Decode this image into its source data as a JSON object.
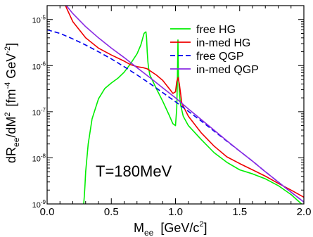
{
  "chart_data": {
    "type": "line",
    "xlabel": {
      "main": "M",
      "sub": "ee",
      "unit": "[GeV/c",
      "unit_sup": "2",
      "unit_close": "]"
    },
    "ylabel": {
      "lead": "dR",
      "lead_sub": "ee",
      "mid": "/dM",
      "mid_sup": "2",
      "unit": "[fm",
      "unit_sup1": "-4",
      "unit_mid": " GeV",
      "unit_sup2": "-2",
      "unit_close": "]"
    },
    "xlim": [
      0.0,
      2.0
    ],
    "ylim": [
      1e-09,
      2e-05
    ],
    "yscale": "log",
    "xticks": [
      "0.0",
      "0.5",
      "1.0",
      "1.5",
      "2.0"
    ],
    "yticks": [
      {
        "value": 1e-09,
        "base": "10",
        "exp": "-9"
      },
      {
        "value": 1e-08,
        "base": "10",
        "exp": "-8"
      },
      {
        "value": 1e-07,
        "base": "10",
        "exp": "-7"
      },
      {
        "value": 1e-06,
        "base": "10",
        "exp": "-6"
      },
      {
        "value": 1e-05,
        "base": "10",
        "exp": "-5"
      }
    ],
    "annotation": "T=180MeV",
    "legend_position": "top-right",
    "grid": false,
    "series": [
      {
        "name": "free HG",
        "color": "#00ee00",
        "dash": "none",
        "x": [
          0.28,
          0.285,
          0.29,
          0.295,
          0.3,
          0.32,
          0.35,
          0.4,
          0.45,
          0.5,
          0.55,
          0.6,
          0.65,
          0.7,
          0.73,
          0.755,
          0.765,
          0.77,
          0.775,
          0.78,
          0.785,
          0.79,
          0.8,
          0.85,
          0.9,
          0.95,
          0.98,
          1.0,
          1.01,
          1.015,
          1.019,
          1.023,
          1.03,
          1.04,
          1.06,
          1.1,
          1.2,
          1.3,
          1.4,
          1.5,
          1.6,
          1.7,
          1.8,
          1.9,
          2.0
        ],
        "y": [
          9e-10,
          1e-09,
          1.5e-09,
          2.5e-09,
          5e-09,
          2e-08,
          7e-08,
          1.9e-07,
          3.2e-07,
          4.2e-07,
          5.3e-07,
          7.2e-07,
          1.1e-06,
          1.8e-06,
          2.8e-06,
          5e-06,
          5.3e-06,
          5.4e-06,
          4e-06,
          2e-06,
          1.2e-06,
          9e-07,
          6.3e-07,
          3.2e-07,
          1.7e-07,
          8.5e-08,
          5.5e-08,
          5e-08,
          1.2e-07,
          5e-07,
          3.6e-06,
          6e-07,
          2.5e-07,
          1.4e-07,
          8e-08,
          5e-08,
          2.5e-08,
          1.3e-08,
          8e-09,
          5.5e-09,
          4.5e-09,
          3.5e-09,
          2.5e-09,
          1.6e-09,
          9e-10
        ]
      },
      {
        "name": "in-med HG",
        "color": "#ee0000",
        "dash": "none",
        "x": [
          0.1,
          0.15,
          0.2,
          0.3,
          0.4,
          0.5,
          0.6,
          0.65,
          0.7,
          0.75,
          0.78,
          0.8,
          0.85,
          0.9,
          0.95,
          0.98,
          1.0,
          1.01,
          1.02,
          1.03,
          1.05,
          1.1,
          1.2,
          1.3,
          1.4,
          1.5,
          1.6,
          1.7,
          1.8,
          1.9,
          2.0
        ],
        "y": [
          4e-05,
          1.8e-05,
          9e-06,
          4e-06,
          2.4e-06,
          1.7e-06,
          1.25e-06,
          1.05e-06,
          9.5e-07,
          9e-07,
          8.5e-07,
          7.8e-07,
          6.3e-07,
          4.8e-07,
          3.2e-07,
          2.5e-07,
          2.7e-07,
          4.5e-07,
          5.5e-07,
          4e-07,
          1.5e-07,
          8e-08,
          3.5e-08,
          1.8e-08,
          1.05e-08,
          7.5e-09,
          5.5e-09,
          4e-09,
          2.8e-09,
          2e-09,
          1.4e-09
        ]
      },
      {
        "name": "free QGP",
        "color": "#0000ee",
        "dash": "7,4",
        "x": [
          0.0,
          0.1,
          0.2,
          0.3,
          0.4,
          0.5,
          0.6,
          0.7,
          0.8,
          0.9,
          1.0,
          1.1,
          1.2,
          1.3,
          1.4,
          1.5,
          1.6,
          1.7,
          1.8,
          1.9,
          2.0
        ],
        "y": [
          6e-06,
          5e-06,
          3.8e-06,
          2.8e-06,
          2e-06,
          1.4e-06,
          9.5e-07,
          6.3e-07,
          4.1e-07,
          2.6e-07,
          1.65e-07,
          1.02e-07,
          6.3e-08,
          3.8e-08,
          2.3e-08,
          1.4e-08,
          8.5e-09,
          5e-09,
          3e-09,
          1.8e-09,
          1.1e-09
        ]
      },
      {
        "name": "in-med QGP",
        "color": "#8a2be2",
        "dash": "none",
        "x": [
          0.15,
          0.2,
          0.3,
          0.4,
          0.5,
          0.6,
          0.7,
          0.8,
          0.9,
          1.0,
          1.1,
          1.2,
          1.3,
          1.4,
          1.5,
          1.6,
          1.7,
          1.8,
          1.9,
          2.0
        ],
        "y": [
          2e-05,
          1.35e-05,
          7e-06,
          4e-06,
          2.4e-06,
          1.5e-06,
          9e-07,
          5.5e-07,
          3.3e-07,
          2e-07,
          1.15e-07,
          6.8e-08,
          4e-08,
          2.35e-08,
          1.4e-08,
          8.5e-09,
          5e-09,
          3e-09,
          1.8e-09,
          1.1e-09
        ]
      }
    ]
  }
}
